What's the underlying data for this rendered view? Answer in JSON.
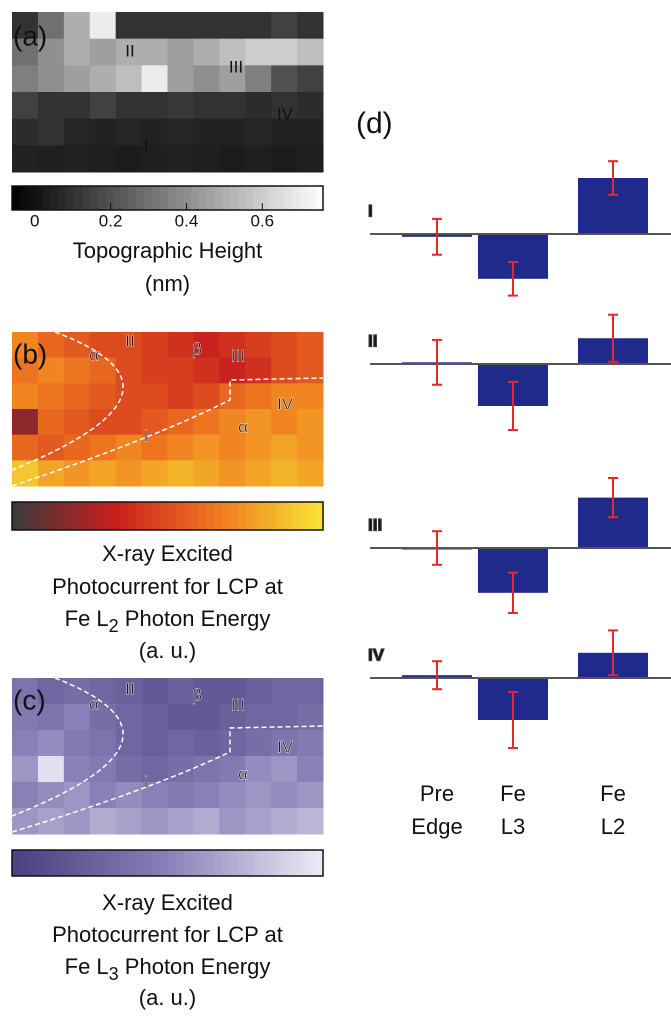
{
  "chart_data": [
    {
      "type": "heatmap",
      "panel_label": "(a)",
      "z": [
        [
          0.1,
          0.3,
          0.5,
          0.7,
          0.1,
          0.1,
          0.1,
          0.1,
          0.1,
          0.1,
          0.15,
          0.1
        ],
        [
          0.3,
          0.4,
          0.5,
          0.45,
          0.5,
          0.5,
          0.45,
          0.5,
          0.55,
          0.6,
          0.6,
          0.55
        ],
        [
          0.35,
          0.4,
          0.45,
          0.5,
          0.55,
          0.7,
          0.45,
          0.4,
          0.45,
          0.35,
          0.2,
          0.15
        ],
        [
          0.15,
          0.1,
          0.1,
          0.15,
          0.1,
          0.1,
          0.12,
          0.1,
          0.1,
          0.08,
          0.1,
          0.08
        ],
        [
          0.08,
          0.1,
          0.06,
          0.05,
          0.06,
          0.05,
          0.06,
          0.05,
          0.05,
          0.06,
          0.05,
          0.05
        ],
        [
          0.05,
          0.04,
          0.05,
          0.04,
          0.03,
          0.04,
          0.05,
          0.04,
          0.03,
          0.04,
          0.03,
          0.04
        ]
      ],
      "colormap": [
        "#000000",
        "#ffffff"
      ],
      "clim": [
        -0.06,
        0.76
      ],
      "colorbar_ticks": [
        0,
        0.2,
        0.4,
        0.6
      ],
      "colorbar_label": [
        "Topographic Height",
        "(nm)"
      ],
      "annotations": [
        "II",
        "III",
        "IV",
        "I"
      ],
      "annotation_color": "#f2d21c"
    },
    {
      "type": "heatmap",
      "panel_label": "(b)",
      "z": [
        [
          0.7,
          0.6,
          0.55,
          0.5,
          0.5,
          0.45,
          0.4,
          0.35,
          0.4,
          0.45,
          0.5,
          0.55
        ],
        [
          0.65,
          0.7,
          0.65,
          0.6,
          0.5,
          0.45,
          0.45,
          0.4,
          0.35,
          0.4,
          0.5,
          0.55
        ],
        [
          0.7,
          0.65,
          0.6,
          0.55,
          0.5,
          0.5,
          0.45,
          0.5,
          0.6,
          0.65,
          0.7,
          0.7
        ],
        [
          0.2,
          0.6,
          0.55,
          0.5,
          0.5,
          0.55,
          0.6,
          0.65,
          0.7,
          0.75,
          0.7,
          0.75
        ],
        [
          0.6,
          0.55,
          0.6,
          0.65,
          0.7,
          0.65,
          0.7,
          0.75,
          0.7,
          0.75,
          0.8,
          0.75
        ],
        [
          0.9,
          0.8,
          0.75,
          0.8,
          0.75,
          0.8,
          0.85,
          0.8,
          0.75,
          0.8,
          0.85,
          0.8
        ]
      ],
      "colormap": [
        "#3a3a3a",
        "#c81e1e",
        "#f07a20",
        "#f8e634"
      ],
      "clim": [
        0,
        1
      ],
      "colorbar_label": [
        "X-ray Excited",
        "Photocurrent for LCP at",
        [
          "Fe L",
          "2",
          " Photon Energy"
        ],
        "(a. u.)"
      ],
      "annotations": [
        "α",
        "II",
        "β",
        "III",
        "IV",
        "α",
        "I"
      ],
      "annotation_color": "#222222"
    },
    {
      "type": "heatmap",
      "panel_label": "(c)",
      "z": [
        [
          0.4,
          0.3,
          0.35,
          0.3,
          0.25,
          0.2,
          0.25,
          0.2,
          0.2,
          0.25,
          0.3,
          0.3
        ],
        [
          0.45,
          0.4,
          0.5,
          0.35,
          0.3,
          0.25,
          0.2,
          0.2,
          0.25,
          0.3,
          0.3,
          0.35
        ],
        [
          0.5,
          0.55,
          0.45,
          0.4,
          0.3,
          0.25,
          0.3,
          0.25,
          0.3,
          0.35,
          0.4,
          0.45
        ],
        [
          0.6,
          0.95,
          0.5,
          0.45,
          0.35,
          0.3,
          0.35,
          0.4,
          0.45,
          0.55,
          0.6,
          0.5
        ],
        [
          0.5,
          0.55,
          0.6,
          0.5,
          0.55,
          0.5,
          0.45,
          0.5,
          0.55,
          0.6,
          0.55,
          0.6
        ],
        [
          0.6,
          0.65,
          0.6,
          0.7,
          0.65,
          0.6,
          0.65,
          0.7,
          0.6,
          0.65,
          0.7,
          0.75
        ]
      ],
      "colormap": [
        "#4a3f80",
        "#8a80b8",
        "#ecebf4"
      ],
      "clim": [
        0,
        1
      ],
      "colorbar_label": [
        "X-ray Excited",
        "Photocurrent for LCP at",
        [
          "Fe L",
          "3",
          " Photon Energy"
        ],
        "(a. u.)"
      ],
      "annotations": [
        "α",
        "II",
        "β",
        "III",
        "IV",
        "α",
        "I"
      ],
      "annotation_color": "#222222"
    },
    {
      "type": "bar",
      "panel_label": "(d)",
      "categories": [
        [
          "Pre",
          "Edge"
        ],
        [
          "Fe",
          "L3"
        ],
        [
          "Fe",
          "L2"
        ]
      ],
      "ylim": [
        -1.2,
        1.2
      ],
      "color": "#1f2a8a",
      "error_color": "#e8262b",
      "series": [
        {
          "name": "I",
          "values": [
            -0.05,
            -0.8,
            1.0
          ],
          "errors": [
            0.32,
            0.3,
            0.3
          ]
        },
        {
          "name": "II",
          "values": [
            0.03,
            -0.75,
            0.46
          ],
          "errors": [
            0.4,
            0.43,
            0.42
          ]
        },
        {
          "name": "III",
          "values": [
            0,
            -0.8,
            0.9
          ],
          "errors": [
            0.3,
            0.36,
            0.35
          ]
        },
        {
          "name": "IV",
          "values": [
            0.05,
            -0.75,
            0.45
          ],
          "errors": [
            0.25,
            0.5,
            0.4
          ]
        }
      ]
    }
  ]
}
